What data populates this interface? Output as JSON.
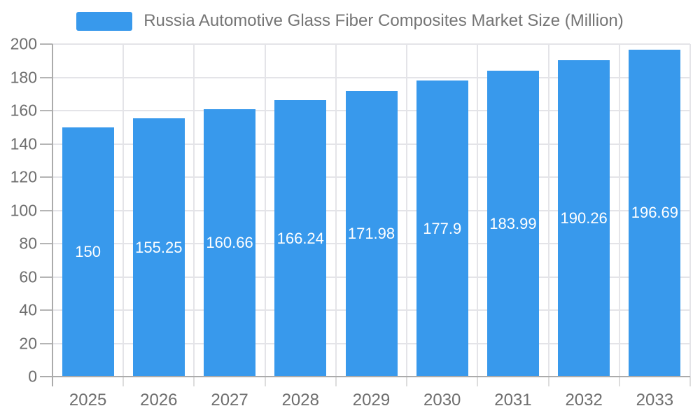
{
  "chart_data": {
    "type": "bar",
    "title": "Russia Automotive Glass Fiber Composites Market Size (Million)",
    "legend_entries": [
      "Russia Automotive Glass Fiber Composites Market Size (Million)"
    ],
    "legend_position": "top",
    "categories": [
      "2025",
      "2026",
      "2027",
      "2028",
      "2029",
      "2030",
      "2031",
      "2032",
      "2033"
    ],
    "values": [
      150,
      155.25,
      160.66,
      166.24,
      171.98,
      177.9,
      183.99,
      190.26,
      196.69
    ],
    "value_labels": [
      "150",
      "155.25",
      "160.66",
      "166.24",
      "171.98",
      "177.9",
      "183.99",
      "190.26",
      "196.69"
    ],
    "xlabel": "",
    "ylabel": "",
    "ylim": [
      0,
      200
    ],
    "ytick_interval": 20,
    "ytick_labels": [
      "0",
      "20",
      "40",
      "60",
      "80",
      "100",
      "120",
      "140",
      "160",
      "180",
      "200"
    ],
    "grid": true,
    "colors": {
      "bar": "#3899EC",
      "axis_line": "#ABABAB",
      "tick": "#B5B5B5",
      "boundary_tick": "#DDDDDD",
      "gridline": "#E4E4E8",
      "axis_text": "#6E6E6E",
      "legend_text": "#757575",
      "value_label": "#FFFFFF",
      "background": "#FFFFFF"
    }
  }
}
